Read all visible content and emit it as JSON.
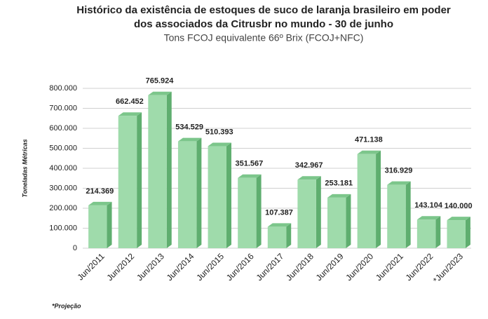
{
  "chart_data": {
    "type": "bar3d",
    "title": [
      "Histórico da existência de estoques de suco de laranja brasileiro em poder",
      "dos associados da Citrusbr no mundo - 30 de junho"
    ],
    "subtitle": "Tons FCOJ equivalente 66º Brix (FCOJ+NFC)",
    "y_label": "Toneladas Métricas",
    "footnote": "*Projeção",
    "categories": [
      "Jun/2011",
      "Jun/2012",
      "Jun/2013",
      "Jun/2014",
      "Jun/2015",
      "Jun/2016",
      "Jun/2017",
      "Jun/2018",
      "Jun/2019",
      "Jun/2020",
      "Jun/2021",
      "Jun/2022",
      "*Jun/2023"
    ],
    "values": [
      214369,
      662452,
      765924,
      534529,
      510393,
      351567,
      107387,
      342967,
      253181,
      471138,
      316929,
      143104,
      140000
    ],
    "value_labels": [
      "214.369",
      "662.452",
      "765.924",
      "534.529",
      "510.393",
      "351.567",
      "107.387",
      "342.967",
      "253.181",
      "471.138",
      "316.929",
      "143.104",
      "140.000"
    ],
    "color": "#9fdbab",
    "ylim": [
      0,
      800000
    ],
    "yticks": [
      0,
      {
        "value": 100000,
        "label": "100.000"
      },
      {
        "value": 200000,
        "label": "200.000"
      },
      {
        "value": 300000,
        "label": "300.000"
      },
      {
        "value": 400000,
        "label": "400.000"
      },
      {
        "value": 500000,
        "label": "500.000"
      },
      {
        "value": 600000,
        "label": "600.000"
      },
      {
        "value": 700000,
        "label": "700.000"
      },
      {
        "value": 800000,
        "label": "800.000"
      }
    ],
    "grid": true
  }
}
